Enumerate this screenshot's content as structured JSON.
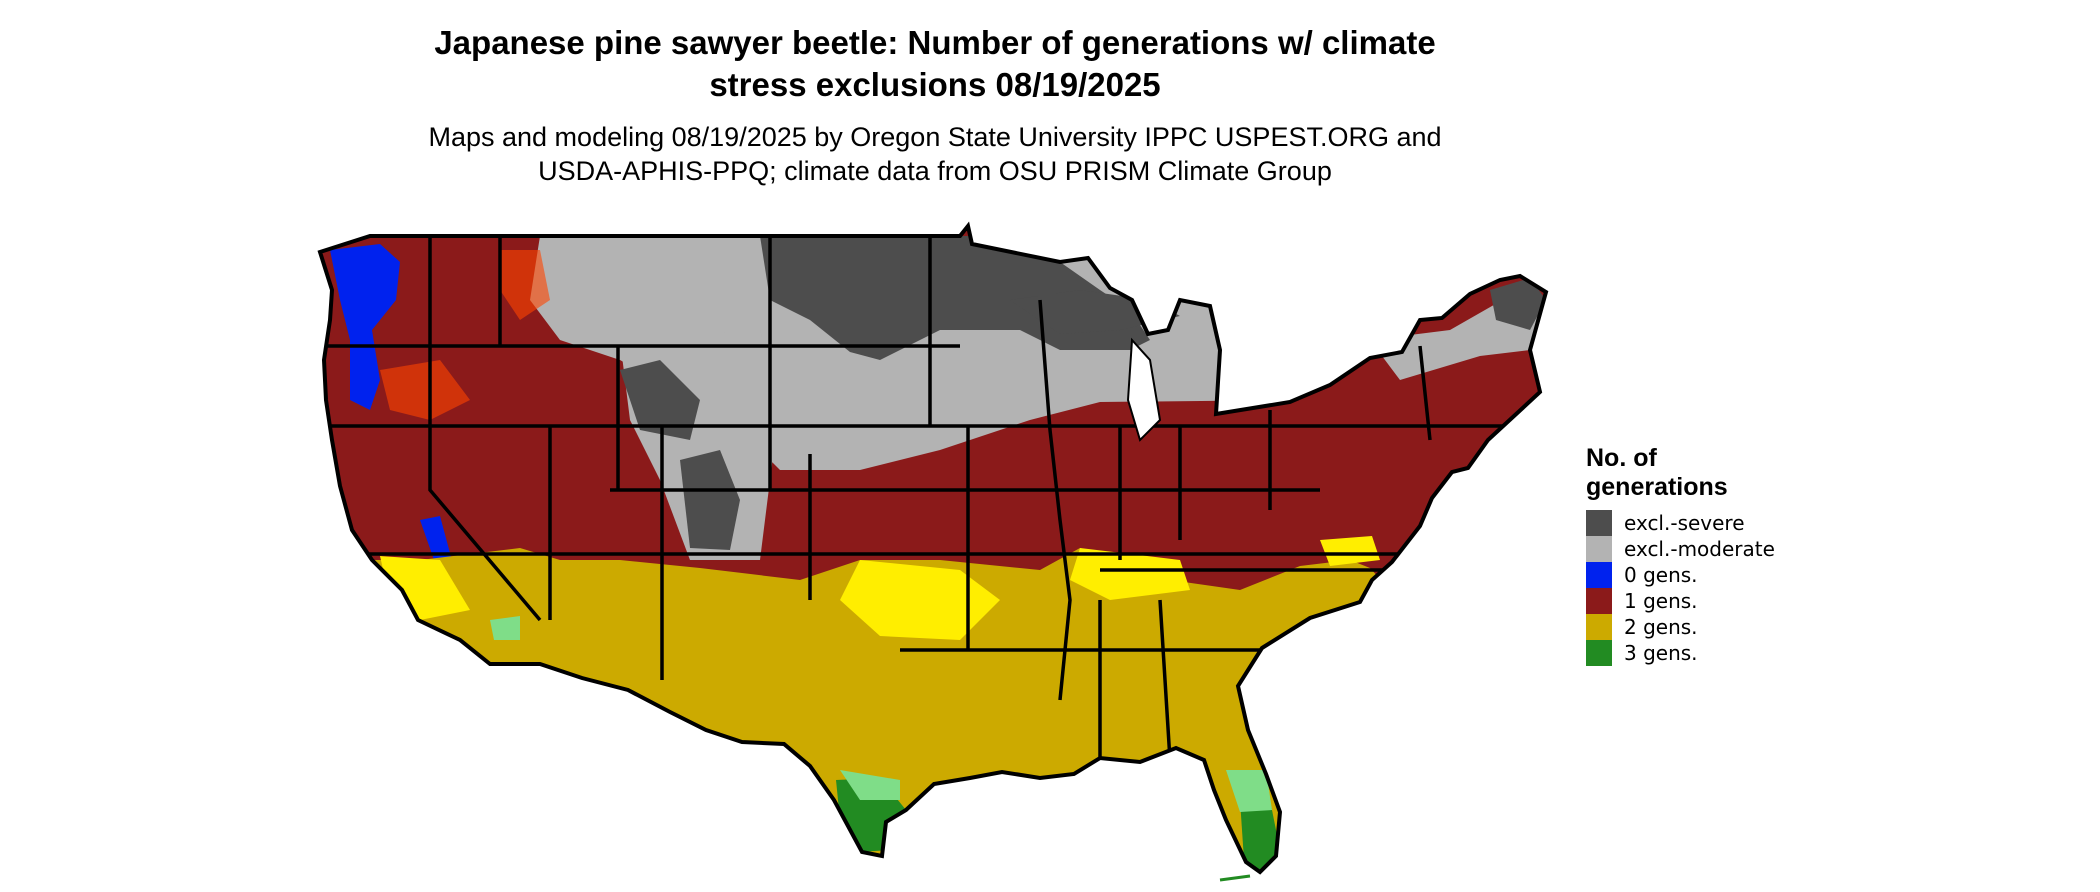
{
  "title": {
    "line1": "Japanese pine sawyer beetle: Number of generations w/ climate",
    "line2": "stress exclusions 08/19/2025"
  },
  "subtitle": {
    "line1": "Maps and modeling 08/19/2025 by Oregon State University IPPC USPEST.ORG and",
    "line2": "USDA-APHIS-PPQ; climate data from OSU PRISM Climate Group"
  },
  "legend": {
    "title_line1": "No. of",
    "title_line2": "generations",
    "items": [
      {
        "label": "excl.-severe",
        "color": "#4d4d4d"
      },
      {
        "label": "excl.-moderate",
        "color": "#b3b3b3"
      },
      {
        "label": "0 gens.",
        "color": "#0022ee"
      },
      {
        "label": "1 gens.",
        "color": "#8b1a1a"
      },
      {
        "label": "2 gens.",
        "color": "#ccaa00"
      },
      {
        "label": "3 gens.",
        "color": "#228b22"
      }
    ]
  },
  "map_colors": {
    "excl_severe": "#4d4d4d",
    "excl_moderate": "#b3b3b3",
    "zero_gens": "#0022ee",
    "one_gen": "#8b1a1a",
    "one_gen_hot": "#ff4400",
    "two_gens": "#ccaa00",
    "two_gens_light": "#ffee00",
    "three_gens": "#228b22",
    "three_gens_light": "#7fdd88",
    "border": "#000000"
  }
}
